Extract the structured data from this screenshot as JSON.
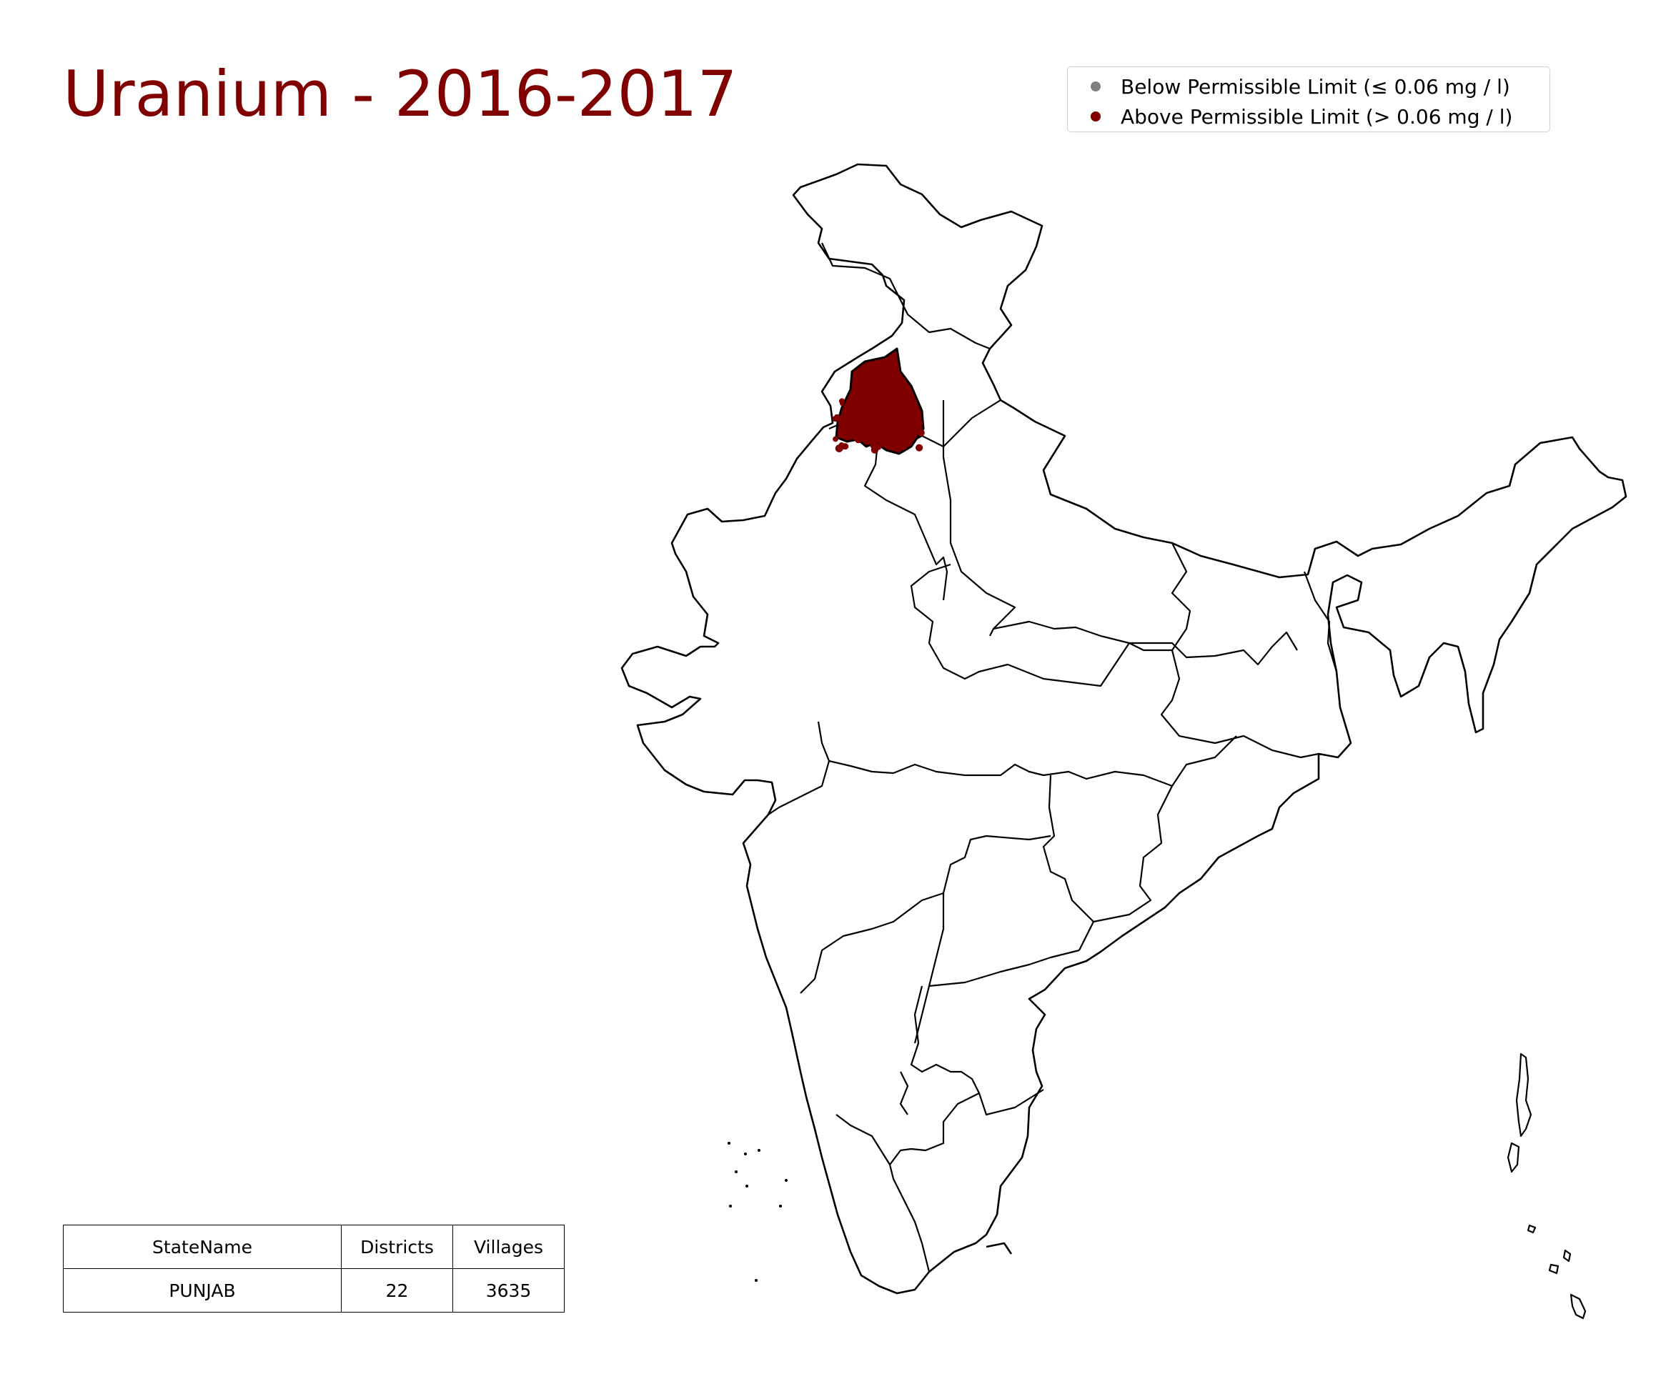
{
  "title": "Uranium - 2016-2017",
  "colors": {
    "title": "#800000",
    "above": "#800000",
    "below": "#808080",
    "border": "#000000"
  },
  "legend": {
    "placement": "top-right",
    "items": [
      {
        "label": "Below Permissible Limit (≤ 0.06 mg / l)",
        "color": "#808080"
      },
      {
        "label": "Above Permissible Limit (> 0.06 mg / l)",
        "color": "#800000"
      }
    ]
  },
  "table": {
    "headers": [
      "StateName",
      "Districts",
      "Villages"
    ],
    "rows": [
      [
        "PUNJAB",
        "22",
        "3635"
      ]
    ]
  },
  "map": {
    "region": "India",
    "highlighted_state": "PUNJAB",
    "highlight_status": "above"
  }
}
